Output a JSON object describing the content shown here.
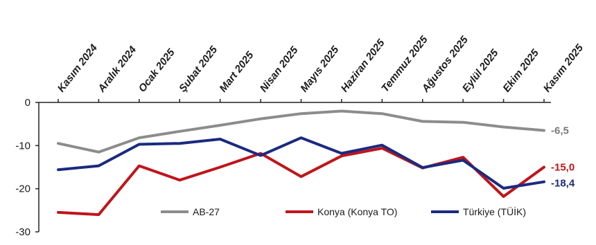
{
  "chart_data": {
    "type": "line",
    "title": "",
    "xlabel": "",
    "ylabel": "",
    "categories": [
      "Kasım 2024",
      "Aralık 2024",
      "Ocak 2025",
      "Şubat 2025",
      "Mart 2025",
      "Nisan 2025",
      "Mayıs 2025",
      "Haziran 2025",
      "Temmuz 2025",
      "Ağustos 2025",
      "Eylül 2025",
      "Ekim 2025",
      "Kasım 2025"
    ],
    "ylim": [
      -30,
      0
    ],
    "yticks": [
      "0",
      "-10",
      "-20",
      "-30"
    ],
    "grid": false,
    "legend_position": "bottom",
    "series": [
      {
        "name": "AB-27",
        "color": "#8c8c8c",
        "values": [
          -9.5,
          -11.5,
          -8.2,
          -6.7,
          -5.3,
          -3.8,
          -2.6,
          -2.0,
          -2.6,
          -4.4,
          -4.6,
          -5.7,
          -6.5
        ],
        "end_label": "-6,5"
      },
      {
        "name": "Konya (Konya TO)",
        "color": "#c0141a",
        "values": [
          -25.5,
          -26.0,
          -14.7,
          -18.0,
          -15.0,
          -11.8,
          -17.2,
          -12.4,
          -10.6,
          -15.2,
          -12.7,
          -21.8,
          -15.0
        ],
        "end_label": "-15,0"
      },
      {
        "name": "Türkiye (TÜİK)",
        "color": "#1a2a80",
        "values": [
          -15.6,
          -14.7,
          -9.7,
          -9.5,
          -8.5,
          -12.3,
          -8.2,
          -11.8,
          -9.9,
          -15.1,
          -13.4,
          -19.9,
          -18.4
        ],
        "end_label": "-18,4"
      }
    ]
  }
}
